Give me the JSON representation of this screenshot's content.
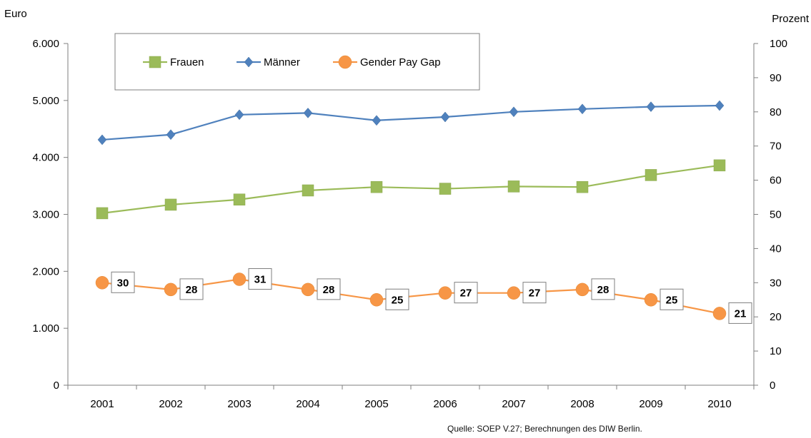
{
  "chart_data": {
    "type": "line",
    "categories": [
      "2001",
      "2002",
      "2003",
      "2004",
      "2005",
      "2006",
      "2007",
      "2008",
      "2009",
      "2010"
    ],
    "y_left": {
      "label": "Euro",
      "range": [
        0,
        6000
      ],
      "ticks": [
        0,
        1000,
        2000,
        3000,
        4000,
        5000,
        6000
      ],
      "tick_labels": [
        "0",
        "1.000",
        "2.000",
        "3.000",
        "4.000",
        "5.000",
        "6.000"
      ]
    },
    "y_right": {
      "label": "Prozent",
      "range": [
        0,
        100
      ],
      "ticks": [
        0,
        10,
        20,
        30,
        40,
        50,
        60,
        70,
        80,
        90,
        100
      ],
      "tick_labels": [
        "0",
        "10",
        "20",
        "30",
        "40",
        "50",
        "60",
        "70",
        "80",
        "90",
        "100"
      ]
    },
    "series": [
      {
        "name": "Frauen",
        "axis": "left",
        "marker": "square",
        "color": "#9BBB59",
        "values": [
          3020,
          3170,
          3260,
          3420,
          3480,
          3450,
          3490,
          3480,
          3690,
          3860
        ]
      },
      {
        "name": "Männer",
        "axis": "left",
        "marker": "diamond",
        "color": "#4F81BD",
        "values": [
          4310,
          4400,
          4750,
          4780,
          4650,
          4710,
          4800,
          4850,
          4890,
          4910
        ]
      },
      {
        "name": "Gender Pay Gap",
        "axis": "right",
        "marker": "circle",
        "color": "#F79646",
        "values": [
          30,
          28,
          31,
          28,
          25,
          27,
          27,
          28,
          25,
          21
        ],
        "data_labels": [
          "30",
          "28",
          "31",
          "28",
          "25",
          "27",
          "27",
          "28",
          "25",
          "21"
        ]
      }
    ],
    "legend": {
      "position": "top-left",
      "items": [
        "Frauen",
        "Männer",
        "Gender Pay Gap"
      ]
    },
    "grid": false
  },
  "source": "Quelle: SOEP V.27; Berechnungen des DIW Berlin."
}
